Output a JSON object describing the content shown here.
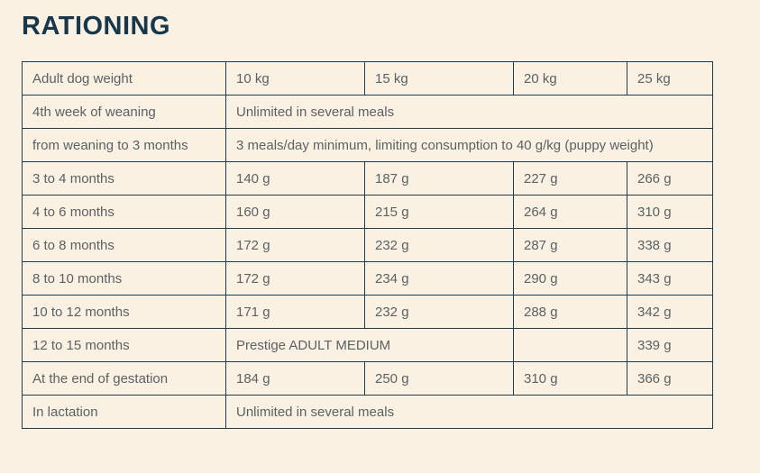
{
  "page": {
    "title": "RATIONING",
    "colors": {
      "background": "#FAF1E2",
      "title_text": "#16374C",
      "table_border": "#1E3C50",
      "cell_text": "#5B6165"
    }
  },
  "table": {
    "rows": [
      {
        "label": "Adult dog weight",
        "cells": [
          "10 kg",
          "15 kg",
          "20 kg",
          "25 kg"
        ]
      },
      {
        "label": "4th week of weaning",
        "cells": [
          "Unlimited in several meals"
        ]
      },
      {
        "label": "from weaning to 3 months",
        "cells": [
          "3 meals/day minimum, limiting consumption to 40 g/kg (puppy weight)"
        ]
      },
      {
        "label": "3 to 4 months",
        "cells": [
          "140 g",
          "187 g",
          "227 g",
          "266 g"
        ]
      },
      {
        "label": "4 to 6 months",
        "cells": [
          "160 g",
          "215 g",
          "264 g",
          "310 g"
        ]
      },
      {
        "label": "6 to 8 months",
        "cells": [
          "172 g",
          "232 g",
          "287 g",
          "338 g"
        ]
      },
      {
        "label": "8 to 10 months",
        "cells": [
          "172 g",
          "234 g",
          "290 g",
          "343 g"
        ]
      },
      {
        "label": "10 to 12 months",
        "cells": [
          "171 g",
          "232 g",
          "288 g",
          "342 g"
        ]
      },
      {
        "label": "12 to 15 months",
        "cells": [
          "Prestige ADULT MEDIUM",
          "",
          "339 g"
        ]
      },
      {
        "label": "At the end of gestation",
        "cells": [
          "184 g",
          "250 g",
          "310 g",
          "366 g"
        ]
      },
      {
        "label": "In lactation",
        "cells": [
          "Unlimited in several meals"
        ]
      }
    ]
  }
}
